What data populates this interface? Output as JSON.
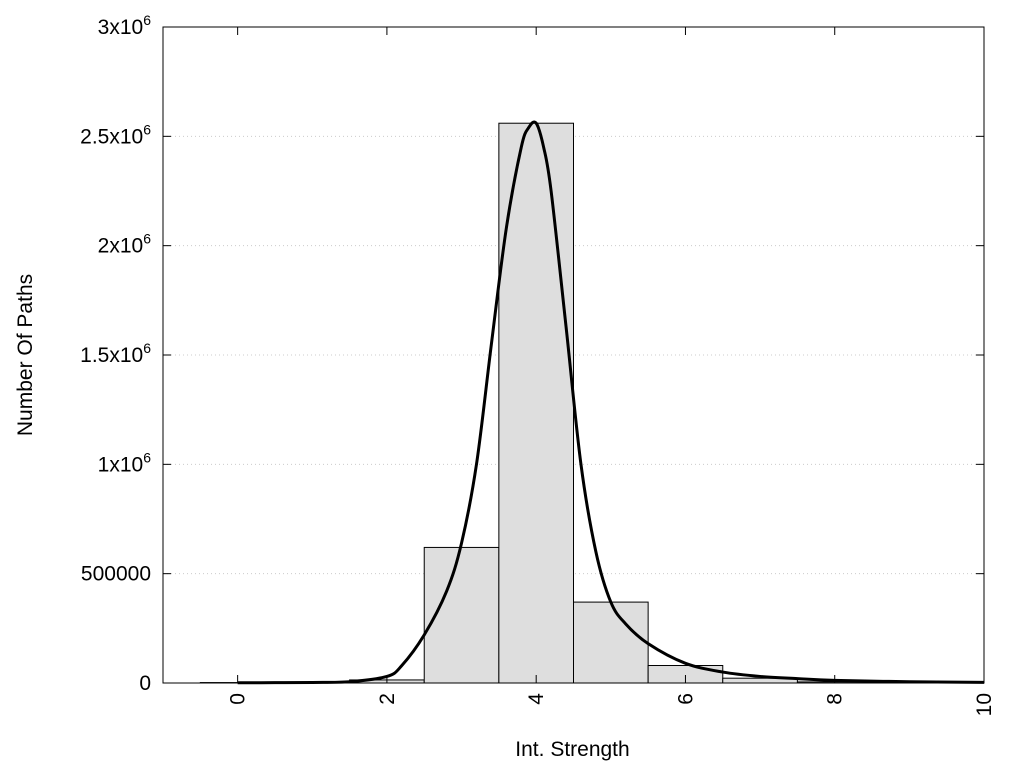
{
  "chart_data": {
    "type": "bar",
    "xlabel": "Int. Strength",
    "ylabel": "Number Of Paths",
    "xlim": [
      -1,
      10
    ],
    "ylim": [
      0,
      3000000
    ],
    "x_ticks": [
      {
        "value": 0,
        "label": "0"
      },
      {
        "value": 2,
        "label": "2"
      },
      {
        "value": 4,
        "label": "4"
      },
      {
        "value": 6,
        "label": "6"
      },
      {
        "value": 8,
        "label": "8"
      },
      {
        "value": 10,
        "label": "10"
      }
    ],
    "y_ticks": [
      {
        "value": 0,
        "label": "0",
        "sup": ""
      },
      {
        "value": 500000,
        "label": "500000",
        "sup": ""
      },
      {
        "value": 1000000,
        "label": "1x10",
        "sup": "6"
      },
      {
        "value": 1500000,
        "label": "1.5x10",
        "sup": "6"
      },
      {
        "value": 2000000,
        "label": "2x10",
        "sup": "6"
      },
      {
        "value": 2500000,
        "label": "2.5x10",
        "sup": "6"
      },
      {
        "value": 3000000,
        "label": "3x10",
        "sup": "6"
      }
    ],
    "bar_width": 1,
    "bars": [
      {
        "x": 0,
        "value": 2000
      },
      {
        "x": 1,
        "value": 4000
      },
      {
        "x": 2,
        "value": 14000
      },
      {
        "x": 3,
        "value": 620000
      },
      {
        "x": 4,
        "value": 2560000
      },
      {
        "x": 5,
        "value": 370000
      },
      {
        "x": 6,
        "value": 80000
      },
      {
        "x": 7,
        "value": 22000
      },
      {
        "x": 8,
        "value": 5000
      },
      {
        "x": 9,
        "value": 2000
      }
    ],
    "curve": {
      "x": [
        0,
        0.5,
        1,
        1.5,
        2,
        2.2,
        2.5,
        2.8,
        3,
        3.2,
        3.4,
        3.6,
        3.8,
        3.9,
        4,
        4.1,
        4.2,
        4.4,
        4.6,
        4.8,
        5,
        5.2,
        5.5,
        6,
        6.5,
        7,
        7.5,
        8,
        9,
        10
      ],
      "y": [
        1000,
        1500,
        2500,
        6000,
        30000,
        80000,
        220000,
        420000,
        640000,
        1000000,
        1550000,
        2080000,
        2450000,
        2540000,
        2560000,
        2450000,
        2250000,
        1630000,
        1000000,
        600000,
        370000,
        270000,
        180000,
        90000,
        50000,
        30000,
        20000,
        12000,
        6000,
        3000
      ]
    },
    "grid": {
      "y": true,
      "x": false
    },
    "legend": "none",
    "colors": {
      "bar_fill": "#dedede",
      "bar_stroke": "#000000",
      "curve": "#000000",
      "grid": "#cccccc"
    }
  }
}
